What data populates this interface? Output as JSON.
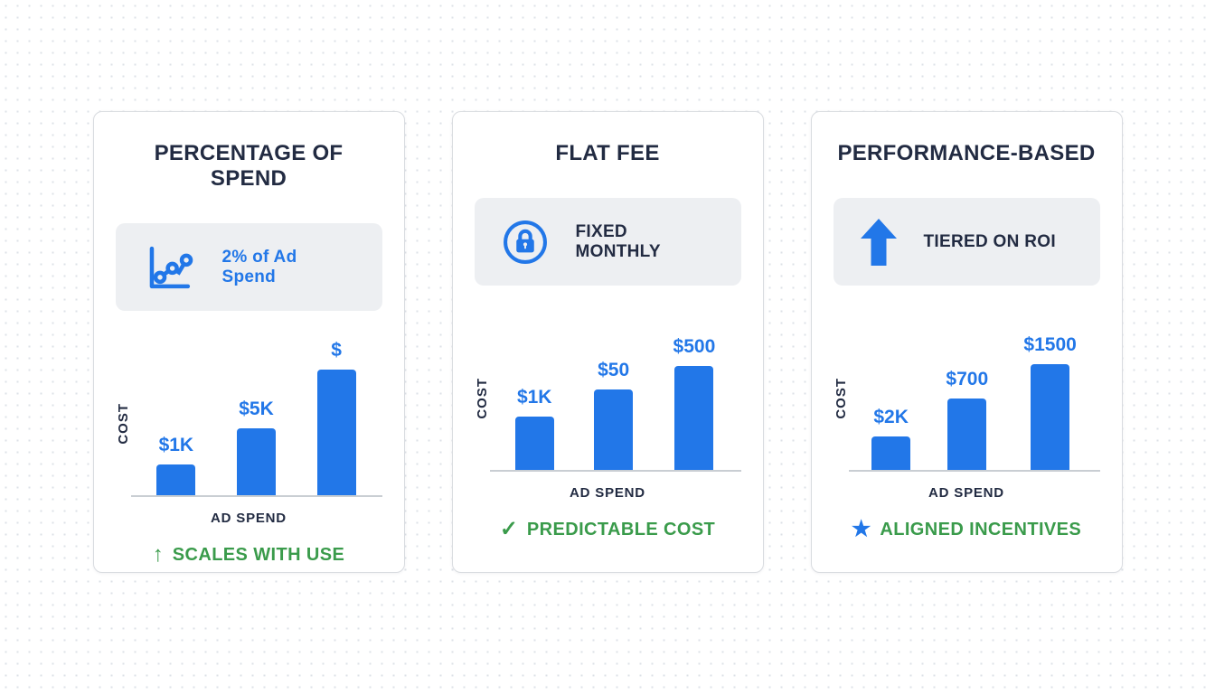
{
  "colors": {
    "bar_blue": "#2277e8",
    "title_navy": "#222b42",
    "footer_green": "#3a9b4b",
    "badge_bg": "#edeff2",
    "card_border": "#d9dce0",
    "axis_gray": "#c9ced3",
    "background_dot": "#dde1e7"
  },
  "cards": [
    {
      "title": "PERCENTAGE OF SPEND",
      "badge": {
        "icon": "line-chart-icon",
        "label": "2% of Ad Spend"
      },
      "ylabel": "COST",
      "xlabel": "AD SPEND",
      "footer": {
        "icon": "arrow-up-icon",
        "glyph": "↑",
        "label": "SCALES WITH USE"
      }
    },
    {
      "title": "FLAT FEE",
      "badge": {
        "icon": "lock-icon",
        "label": "FIXED MONTHLY"
      },
      "ylabel": "COST",
      "xlabel": "AD SPEND",
      "footer": {
        "icon": "check-icon",
        "glyph": "✓",
        "label": "PREDICTABLE COST"
      }
    },
    {
      "title": "PERFORMANCE-BASED",
      "badge": {
        "icon": "arrow-up-icon",
        "label": "TIERED ON ROI"
      },
      "ylabel": "COST",
      "xlabel": "AD SPEND",
      "footer": {
        "icon": "star-icon",
        "glyph": "★",
        "label": "ALIGNED INCENTIVES"
      }
    }
  ],
  "chart_data": [
    {
      "type": "bar",
      "title": "PERCENTAGE OF SPEND",
      "xlabel": "AD SPEND",
      "ylabel": "COST",
      "bar_labels": [
        "$1K",
        "$5K",
        "$"
      ],
      "values": [
        34,
        74,
        139
      ],
      "values_note": "relative bar heights in px; cost scales up with ad spend",
      "bar_color": "#2277e8",
      "grid": false,
      "legend": false
    },
    {
      "type": "bar",
      "title": "FLAT FEE",
      "xlabel": "AD SPEND",
      "ylabel": "COST",
      "bar_labels": [
        "$1K",
        "$50",
        "$500"
      ],
      "values": [
        59,
        89,
        115
      ],
      "values_note": "relative bar heights in px",
      "bar_color": "#2277e8",
      "grid": false,
      "legend": false
    },
    {
      "type": "bar",
      "title": "PERFORMANCE-BASED",
      "xlabel": "AD SPEND",
      "ylabel": "COST",
      "bar_labels": [
        "$2K",
        "$700",
        "$1500"
      ],
      "values": [
        37,
        79,
        117
      ],
      "values_note": "relative bar heights in px",
      "bar_color": "#2277e8",
      "grid": false,
      "legend": false
    }
  ]
}
